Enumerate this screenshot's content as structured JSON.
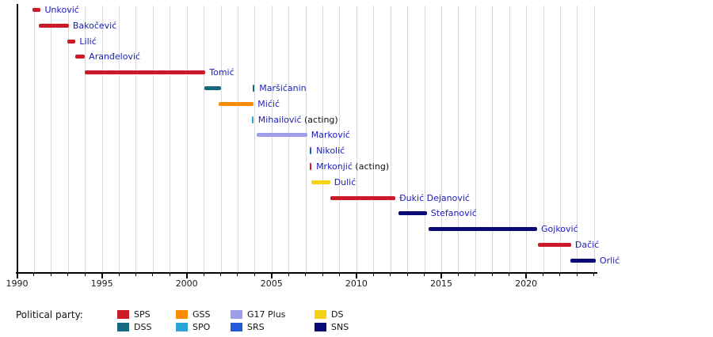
{
  "chart_data": {
    "type": "timeline",
    "title": "",
    "x_axis": {
      "start_year": 1990,
      "end_year": 2024.1,
      "major_tick_years": [
        1990,
        1995,
        2000,
        2005,
        2010,
        2015,
        2020
      ],
      "minor_tick_interval_years": 1,
      "gridlines": "vertical light-gray line at every year"
    },
    "rows": [
      {
        "name": "Unković",
        "suffix": "",
        "party": "SPS",
        "bars": [
          [
            1990.9,
            1991.4
          ]
        ],
        "marks": []
      },
      {
        "name": "Bakočević",
        "suffix": "",
        "party": "SPS",
        "bars": [
          [
            1991.3,
            1993.05
          ]
        ],
        "marks": []
      },
      {
        "name": "Lilić",
        "suffix": "",
        "party": "SPS",
        "bars": [
          [
            1992.95,
            1993.45
          ]
        ],
        "marks": []
      },
      {
        "name": "Aranđelović",
        "suffix": "",
        "party": "SPS",
        "bars": [
          [
            1993.45,
            1994.0
          ]
        ],
        "marks": []
      },
      {
        "name": "Tomić",
        "suffix": "",
        "party": "SPS",
        "bars": [
          [
            1994.0,
            2001.1
          ]
        ],
        "marks": []
      },
      {
        "name": "Maršićanin",
        "suffix": "",
        "party": "DSS",
        "bars": [
          [
            2001.05,
            2002.0
          ]
        ],
        "marks": [
          2003.95
        ]
      },
      {
        "name": "Mićić",
        "suffix": "",
        "party": "GSS",
        "bars": [
          [
            2001.9,
            2003.95
          ]
        ],
        "marks": []
      },
      {
        "name": "Mihailović",
        "suffix": " (acting)",
        "party": "SPO",
        "bars": [],
        "marks": [
          2003.88
        ]
      },
      {
        "name": "Marković",
        "suffix": "",
        "party": "G17 Plus",
        "bars": [
          [
            2004.1,
            2007.1
          ]
        ],
        "marks": []
      },
      {
        "name": "Nikolić",
        "suffix": "",
        "party": "SRS",
        "bars": [],
        "marks": [
          2007.3
        ]
      },
      {
        "name": "Mrkonjić",
        "suffix": " (acting)",
        "party": "SPS",
        "bars": [],
        "marks": [
          2007.3
        ]
      },
      {
        "name": "Dulić",
        "suffix": "",
        "party": "DS",
        "bars": [
          [
            2007.35,
            2008.45
          ]
        ],
        "marks": []
      },
      {
        "name": "Đukić Dejanović",
        "suffix": "",
        "party": "SPS",
        "bars": [
          [
            2008.45,
            2012.3
          ]
        ],
        "marks": []
      },
      {
        "name": "Stefanović",
        "suffix": "",
        "party": "SNS",
        "bars": [
          [
            2012.5,
            2014.15
          ]
        ],
        "marks": []
      },
      {
        "name": "Gojković",
        "suffix": "",
        "party": "SNS",
        "bars": [
          [
            2014.25,
            2020.65
          ]
        ],
        "marks": []
      },
      {
        "name": "Dačić",
        "suffix": "",
        "party": "SPS",
        "bars": [
          [
            2020.7,
            2022.65
          ]
        ],
        "marks": []
      },
      {
        "name": "Orlić",
        "suffix": "",
        "party": "SNS",
        "bars": [
          [
            2022.6,
            2024.1
          ]
        ],
        "marks": []
      }
    ],
    "parties": [
      {
        "name": "SPS",
        "color": "#cc1b28"
      },
      {
        "name": "DSS",
        "color": "#16697e"
      },
      {
        "name": "GSS",
        "color": "#fb8b00"
      },
      {
        "name": "SPO",
        "color": "#29a5d5"
      },
      {
        "name": "G17 Plus",
        "color": "#9e9ee8"
      },
      {
        "name": "SRS",
        "color": "#2159d8"
      },
      {
        "name": "DS",
        "color": "#f5d313"
      },
      {
        "name": "SNS",
        "color": "#0a0a78"
      }
    ],
    "legend": {
      "title": "Political party:",
      "columns": [
        [
          "SPS",
          "DSS"
        ],
        [
          "GSS",
          "SPO"
        ],
        [
          "G17 Plus",
          "SRS"
        ],
        [
          "DS",
          "SNS"
        ]
      ]
    }
  },
  "colors": {
    "label_link": "#1b1bbd",
    "label_plain": "#111111",
    "axis": "#000000",
    "gridline": "#d9d9d9",
    "background": "#ffffff"
  }
}
